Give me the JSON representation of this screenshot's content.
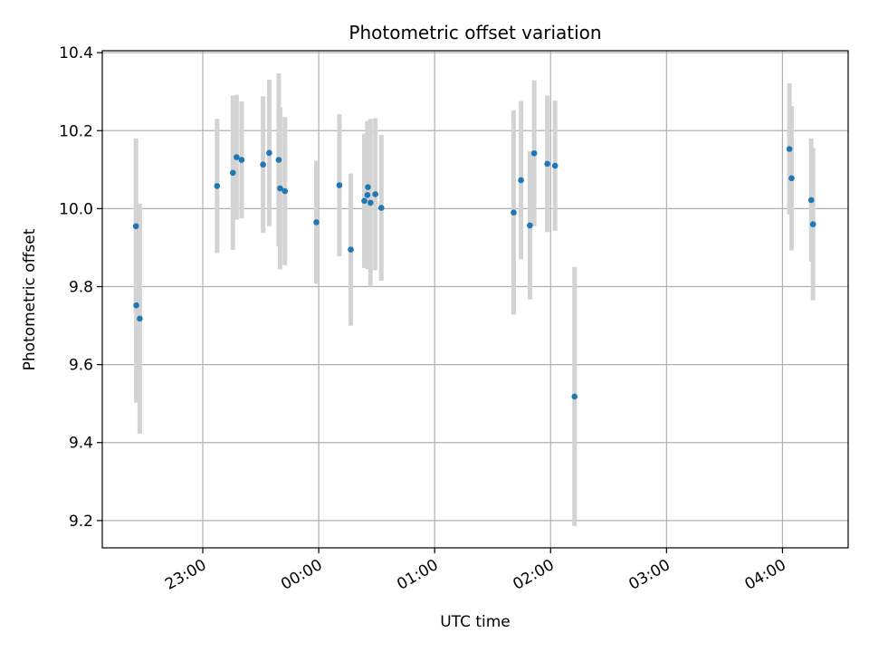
{
  "chart_data": {
    "type": "scatter",
    "title": "Photometric offset variation",
    "xlabel": "UTC time",
    "ylabel": "Photometric offset",
    "grid": true,
    "xlim_minutes": [
      -52,
      334
    ],
    "ylim": [
      9.13,
      10.405
    ],
    "x_unit": "minutes after 23:00 UTC",
    "x_ticks": [
      {
        "value": 0,
        "label": "23:00"
      },
      {
        "value": 60,
        "label": "00:00"
      },
      {
        "value": 120,
        "label": "01:00"
      },
      {
        "value": 180,
        "label": "02:00"
      },
      {
        "value": 240,
        "label": "03:00"
      },
      {
        "value": 300,
        "label": "04:00"
      }
    ],
    "y_ticks": [
      {
        "value": 9.2,
        "label": "9.2"
      },
      {
        "value": 9.4,
        "label": "9.4"
      },
      {
        "value": 9.6,
        "label": "9.6"
      },
      {
        "value": 9.8,
        "label": "9.8"
      },
      {
        "value": 10.0,
        "label": "10.0"
      },
      {
        "value": 10.2,
        "label": "10.2"
      },
      {
        "value": 10.4,
        "label": "10.4"
      }
    ],
    "marker_color": "#1f77b4",
    "errorbar_color": "#d3d3d3",
    "points": [
      {
        "t": -34.6,
        "y": 9.955,
        "err": 0.225
      },
      {
        "t": -34.4,
        "y": 9.752,
        "err": 0.25
      },
      {
        "t": -32.6,
        "y": 9.718,
        "err": 0.295
      },
      {
        "t": 7.4,
        "y": 10.058,
        "err": 0.172
      },
      {
        "t": 15.6,
        "y": 10.092,
        "err": 0.198
      },
      {
        "t": 17.5,
        "y": 10.132,
        "err": 0.16
      },
      {
        "t": 20.1,
        "y": 10.125,
        "err": 0.15
      },
      {
        "t": 31.2,
        "y": 10.113,
        "err": 0.175
      },
      {
        "t": 34.4,
        "y": 10.143,
        "err": 0.188
      },
      {
        "t": 39.3,
        "y": 10.125,
        "err": 0.222
      },
      {
        "t": 40.0,
        "y": 10.052,
        "err": 0.208
      },
      {
        "t": 42.5,
        "y": 10.045,
        "err": 0.19
      },
      {
        "t": 58.8,
        "y": 9.965,
        "err": 0.158
      },
      {
        "t": 70.7,
        "y": 10.06,
        "err": 0.182
      },
      {
        "t": 76.6,
        "y": 9.895,
        "err": 0.195
      },
      {
        "t": 83.6,
        "y": 10.02,
        "err": 0.172
      },
      {
        "t": 85.2,
        "y": 10.035,
        "err": 0.19
      },
      {
        "t": 85.5,
        "y": 10.055,
        "err": 0.17
      },
      {
        "t": 86.8,
        "y": 10.015,
        "err": 0.215
      },
      {
        "t": 89.3,
        "y": 10.037,
        "err": 0.195
      },
      {
        "t": 92.4,
        "y": 10.002,
        "err": 0.187
      },
      {
        "t": 160.9,
        "y": 9.99,
        "err": 0.262
      },
      {
        "t": 164.7,
        "y": 10.073,
        "err": 0.203
      },
      {
        "t": 169.3,
        "y": 9.957,
        "err": 0.19
      },
      {
        "t": 171.5,
        "y": 10.142,
        "err": 0.187
      },
      {
        "t": 178.3,
        "y": 10.115,
        "err": 0.175
      },
      {
        "t": 182.3,
        "y": 10.11,
        "err": 0.167
      },
      {
        "t": 192.4,
        "y": 9.518,
        "err": 0.332
      },
      {
        "t": 303.6,
        "y": 10.153,
        "err": 0.168
      },
      {
        "t": 304.7,
        "y": 10.078,
        "err": 0.185
      },
      {
        "t": 314.9,
        "y": 10.022,
        "err": 0.158
      },
      {
        "t": 315.8,
        "y": 9.96,
        "err": 0.195
      }
    ]
  }
}
